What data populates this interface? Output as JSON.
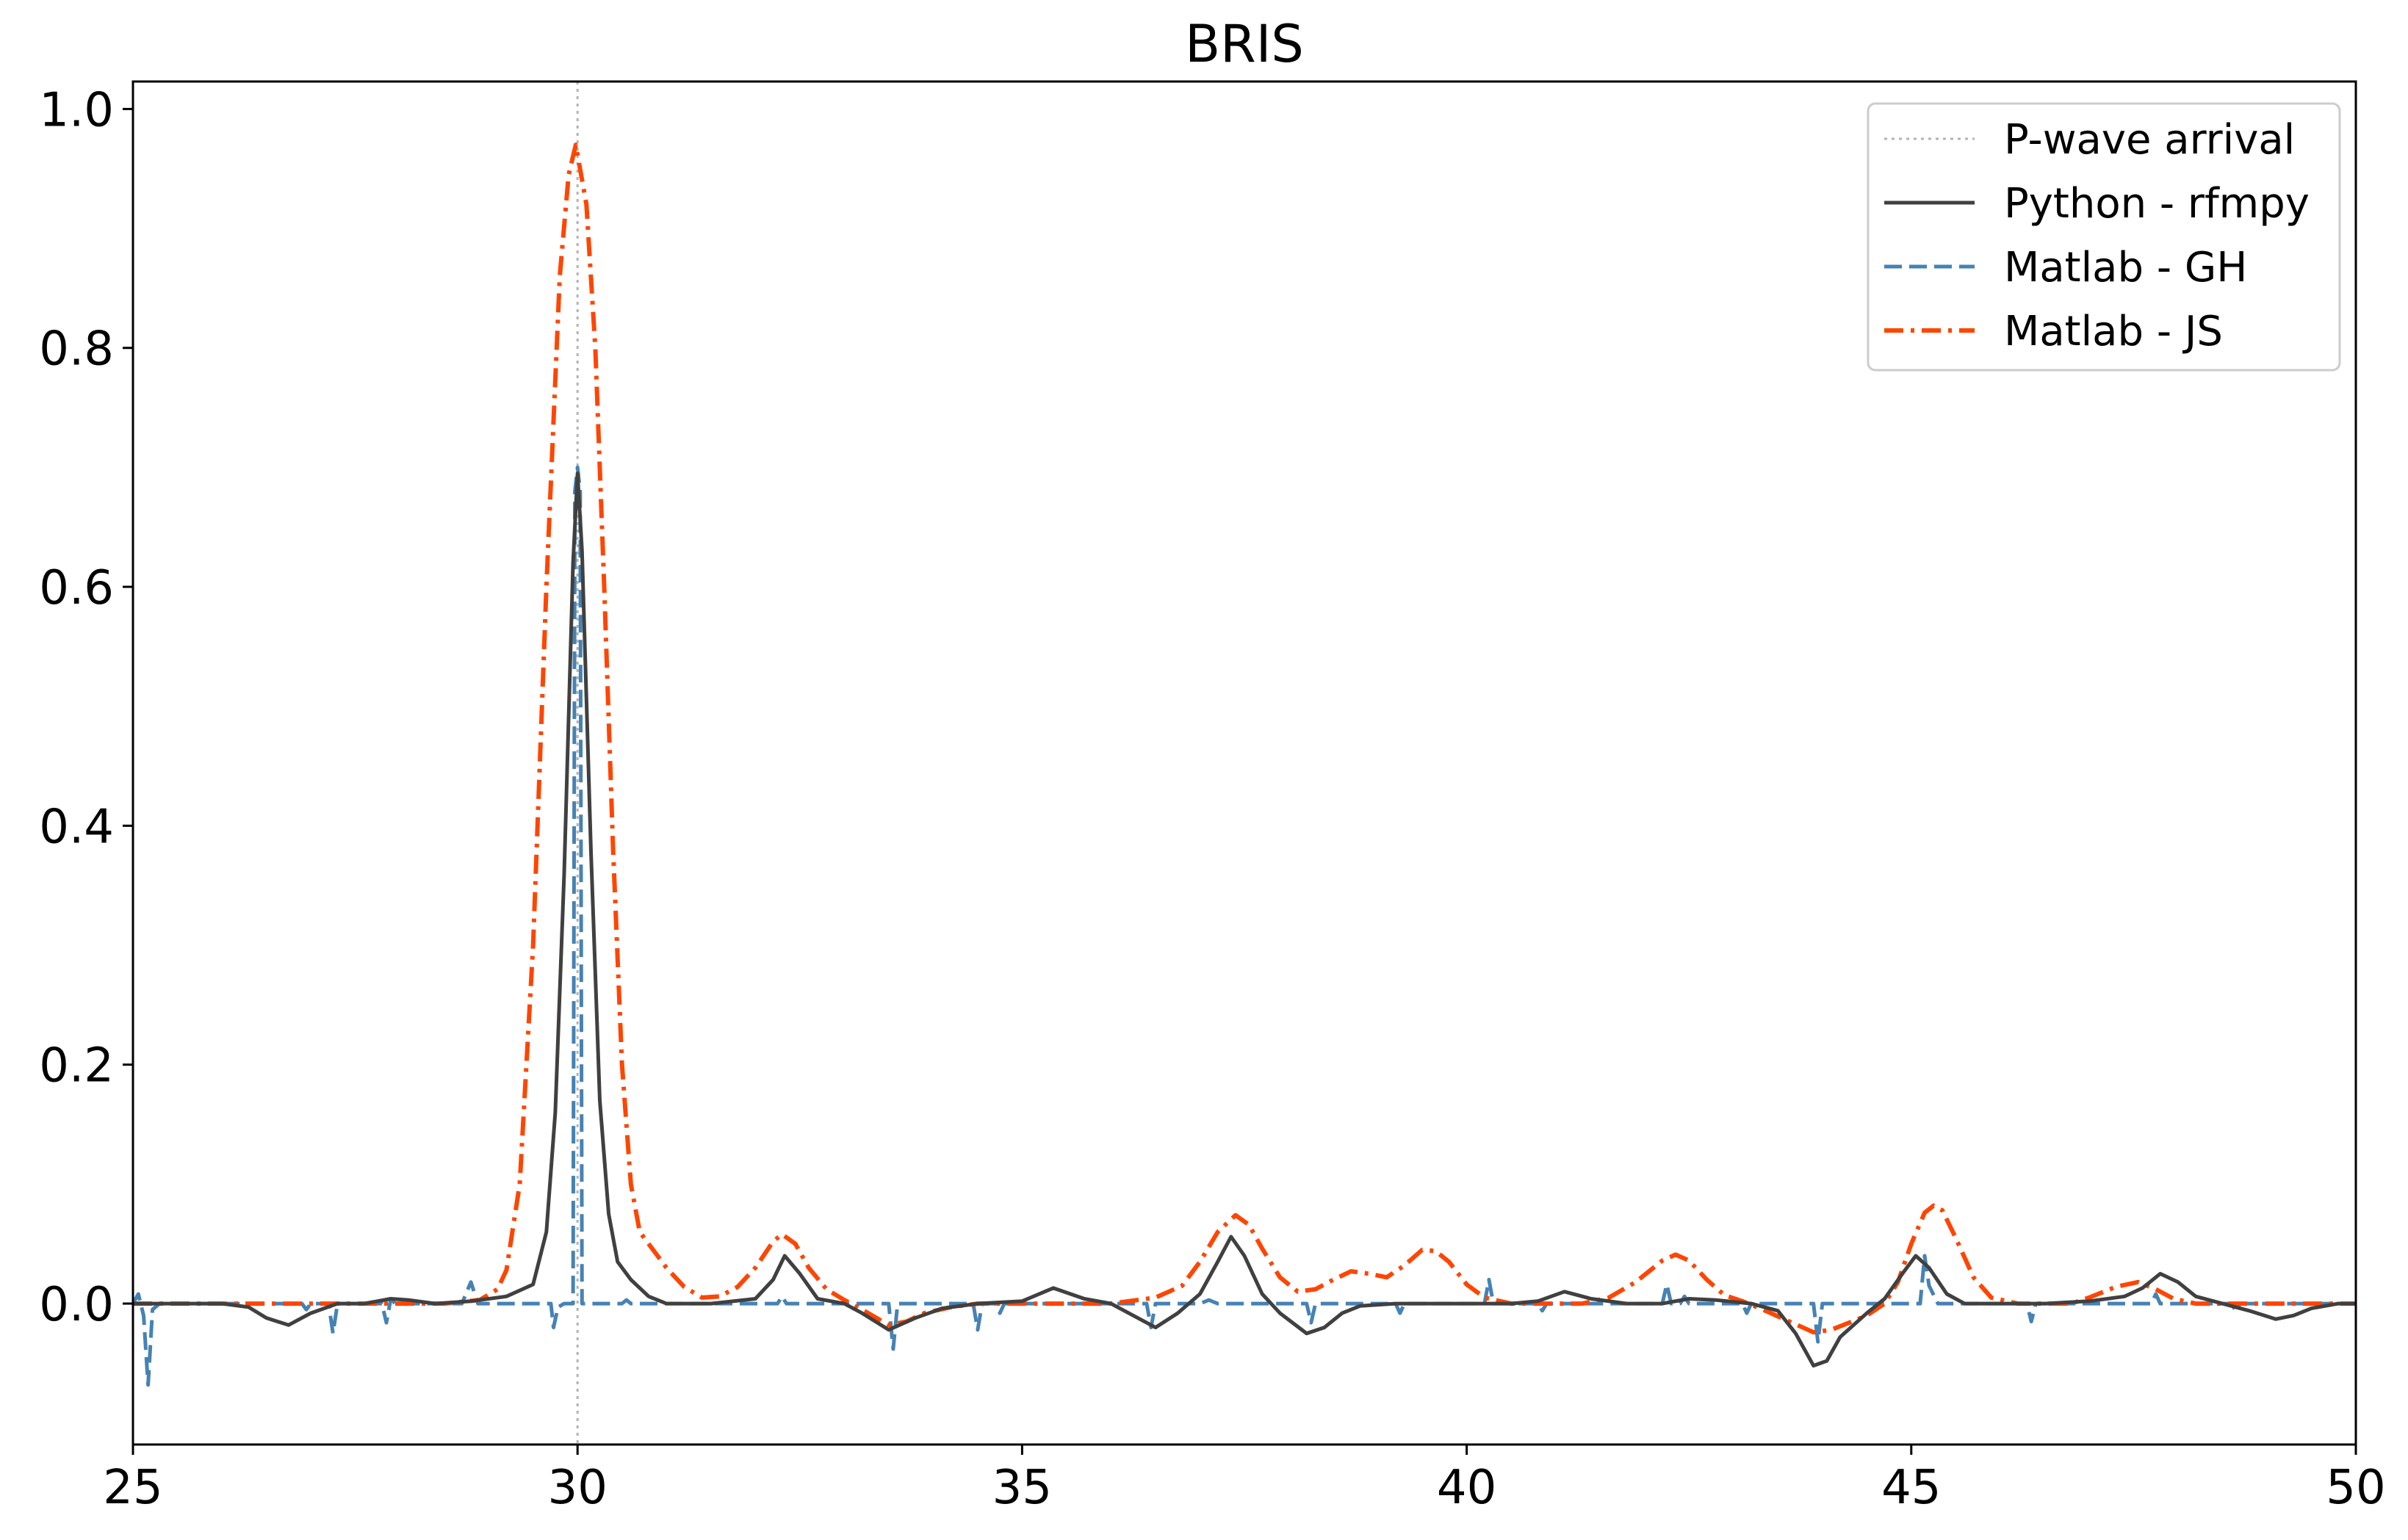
{
  "chart_data": {
    "type": "line",
    "title": "BRIS",
    "xlabel": "",
    "ylabel": "",
    "xlim": [
      25,
      50
    ],
    "ylim": [
      -0.118,
      1.023
    ],
    "xticks": [
      25,
      30,
      35,
      40,
      45,
      50
    ],
    "xtick_labels": [
      "25",
      "30",
      "35",
      "40",
      "45",
      "50"
    ],
    "yticks": [
      0.0,
      0.2,
      0.4,
      0.6,
      0.8,
      1.0
    ],
    "ytick_labels": [
      "0.0",
      "0.2",
      "0.4",
      "0.6",
      "0.8",
      "1.0"
    ],
    "grid": false,
    "legend_position": "upper right",
    "vline": {
      "x": 30.0,
      "name": "P-wave arrival",
      "color": "#b3b3b3",
      "style": "dotted"
    },
    "series": [
      {
        "name": "Python - rfmpy",
        "color": "#404040",
        "style": "solid",
        "points": [
          [
            25.0,
            0.0
          ],
          [
            25.5,
            0.0
          ],
          [
            26.0,
            0.0
          ],
          [
            26.3,
            -0.003
          ],
          [
            26.5,
            -0.012
          ],
          [
            26.75,
            -0.018
          ],
          [
            27.0,
            -0.008
          ],
          [
            27.3,
            0.0
          ],
          [
            27.6,
            0.0
          ],
          [
            27.9,
            0.004
          ],
          [
            28.1,
            0.003
          ],
          [
            28.4,
            0.0
          ],
          [
            28.8,
            0.002
          ],
          [
            29.2,
            0.006
          ],
          [
            29.5,
            0.016
          ],
          [
            29.65,
            0.06
          ],
          [
            29.75,
            0.16
          ],
          [
            29.85,
            0.36
          ],
          [
            29.95,
            0.62
          ],
          [
            30.0,
            0.695
          ],
          [
            30.05,
            0.63
          ],
          [
            30.15,
            0.38
          ],
          [
            30.25,
            0.17
          ],
          [
            30.35,
            0.075
          ],
          [
            30.45,
            0.035
          ],
          [
            30.6,
            0.02
          ],
          [
            30.8,
            0.006
          ],
          [
            31.0,
            0.0
          ],
          [
            31.5,
            0.0
          ],
          [
            32.0,
            0.004
          ],
          [
            32.2,
            0.02
          ],
          [
            32.33,
            0.04
          ],
          [
            32.5,
            0.025
          ],
          [
            32.7,
            0.004
          ],
          [
            33.0,
            0.0
          ],
          [
            33.2,
            -0.008
          ],
          [
            33.5,
            -0.022
          ],
          [
            33.8,
            -0.012
          ],
          [
            34.1,
            -0.004
          ],
          [
            34.5,
            0.0
          ],
          [
            35.0,
            0.002
          ],
          [
            35.35,
            0.013
          ],
          [
            35.7,
            0.004
          ],
          [
            36.0,
            0.0
          ],
          [
            36.2,
            -0.008
          ],
          [
            36.5,
            -0.02
          ],
          [
            36.75,
            -0.008
          ],
          [
            37.0,
            0.008
          ],
          [
            37.2,
            0.035
          ],
          [
            37.35,
            0.056
          ],
          [
            37.5,
            0.04
          ],
          [
            37.7,
            0.008
          ],
          [
            37.9,
            -0.008
          ],
          [
            38.2,
            -0.025
          ],
          [
            38.4,
            -0.02
          ],
          [
            38.6,
            -0.008
          ],
          [
            38.8,
            -0.002
          ],
          [
            39.2,
            0.0
          ],
          [
            40.0,
            0.0
          ],
          [
            40.5,
            0.0
          ],
          [
            40.8,
            0.002
          ],
          [
            41.1,
            0.01
          ],
          [
            41.4,
            0.004
          ],
          [
            41.8,
            0.0
          ],
          [
            42.2,
            0.0
          ],
          [
            42.5,
            0.004
          ],
          [
            42.8,
            0.003
          ],
          [
            43.2,
            0.0
          ],
          [
            43.5,
            -0.006
          ],
          [
            43.7,
            -0.025
          ],
          [
            43.9,
            -0.052
          ],
          [
            44.05,
            -0.048
          ],
          [
            44.2,
            -0.028
          ],
          [
            44.5,
            -0.008
          ],
          [
            44.7,
            0.004
          ],
          [
            44.9,
            0.025
          ],
          [
            45.05,
            0.04
          ],
          [
            45.2,
            0.03
          ],
          [
            45.4,
            0.008
          ],
          [
            45.6,
            0.0
          ],
          [
            46.0,
            0.0
          ],
          [
            46.5,
            0.0
          ],
          [
            47.0,
            0.002
          ],
          [
            47.4,
            0.006
          ],
          [
            47.6,
            0.013
          ],
          [
            47.8,
            0.025
          ],
          [
            48.0,
            0.018
          ],
          [
            48.2,
            0.006
          ],
          [
            48.5,
            0.0
          ],
          [
            48.8,
            -0.006
          ],
          [
            49.1,
            -0.013
          ],
          [
            49.3,
            -0.01
          ],
          [
            49.5,
            -0.004
          ],
          [
            49.8,
            0.0
          ],
          [
            50.0,
            0.0
          ]
        ]
      },
      {
        "name": "Matlab - GH",
        "color": "#4682b4",
        "style": "dashed",
        "points": [
          [
            25.0,
            0.0
          ],
          [
            25.06,
            0.008
          ],
          [
            25.12,
            -0.01
          ],
          [
            25.17,
            -0.068
          ],
          [
            25.22,
            -0.005
          ],
          [
            25.3,
            0.0
          ],
          [
            26.0,
            0.0
          ],
          [
            26.9,
            0.0
          ],
          [
            26.95,
            -0.005
          ],
          [
            27.0,
            0.0
          ],
          [
            27.2,
            0.0
          ],
          [
            27.25,
            -0.025
          ],
          [
            27.3,
            0.0
          ],
          [
            27.8,
            0.0
          ],
          [
            27.85,
            -0.016
          ],
          [
            27.9,
            0.004
          ],
          [
            27.95,
            0.0
          ],
          [
            28.7,
            0.0
          ],
          [
            28.8,
            0.018
          ],
          [
            28.88,
            0.0
          ],
          [
            29.7,
            0.0
          ],
          [
            29.73,
            -0.02
          ],
          [
            29.78,
            -0.003
          ],
          [
            29.85,
            0.0
          ],
          [
            29.95,
            0.0
          ],
          [
            29.97,
            0.68
          ],
          [
            30.0,
            0.7
          ],
          [
            30.03,
            0.68
          ],
          [
            30.05,
            0.0
          ],
          [
            30.5,
            0.0
          ],
          [
            30.55,
            0.003
          ],
          [
            30.6,
            0.0
          ],
          [
            32.25,
            0.0
          ],
          [
            32.3,
            0.006
          ],
          [
            32.35,
            0.0
          ],
          [
            33.5,
            0.0
          ],
          [
            33.55,
            -0.038
          ],
          [
            33.6,
            0.0
          ],
          [
            34.45,
            0.0
          ],
          [
            34.5,
            -0.022
          ],
          [
            34.55,
            0.0
          ],
          [
            34.7,
            0.0
          ],
          [
            34.75,
            -0.008
          ],
          [
            34.8,
            0.0
          ],
          [
            36.4,
            0.0
          ],
          [
            36.45,
            -0.02
          ],
          [
            36.5,
            0.0
          ],
          [
            37.0,
            0.0
          ],
          [
            37.1,
            0.003
          ],
          [
            37.2,
            0.0
          ],
          [
            38.2,
            0.0
          ],
          [
            38.25,
            -0.016
          ],
          [
            38.3,
            0.0
          ],
          [
            39.2,
            0.0
          ],
          [
            39.25,
            -0.008
          ],
          [
            39.3,
            0.0
          ],
          [
            40.2,
            0.0
          ],
          [
            40.25,
            0.02
          ],
          [
            40.3,
            0.0
          ],
          [
            40.8,
            0.0
          ],
          [
            40.85,
            -0.006
          ],
          [
            40.9,
            0.0
          ],
          [
            42.2,
            0.0
          ],
          [
            42.25,
            0.016
          ],
          [
            42.3,
            0.0
          ],
          [
            42.4,
            0.0
          ],
          [
            42.45,
            0.006
          ],
          [
            42.5,
            0.0
          ],
          [
            43.1,
            0.0
          ],
          [
            43.15,
            -0.008
          ],
          [
            43.2,
            0.0
          ],
          [
            43.9,
            0.0
          ],
          [
            43.95,
            -0.032
          ],
          [
            44.0,
            0.0
          ],
          [
            45.1,
            0.0
          ],
          [
            45.15,
            0.04
          ],
          [
            45.2,
            0.015
          ],
          [
            45.3,
            0.0
          ],
          [
            46.3,
            0.0
          ],
          [
            46.35,
            -0.015
          ],
          [
            46.4,
            0.0
          ],
          [
            47.7,
            0.0
          ],
          [
            47.75,
            0.008
          ],
          [
            47.8,
            0.0
          ],
          [
            48.6,
            0.0
          ],
          [
            48.65,
            -0.006
          ],
          [
            48.7,
            0.0
          ],
          [
            50.0,
            0.0
          ]
        ]
      },
      {
        "name": "Matlab - JS",
        "color": "#ff4500",
        "style": "dashdot",
        "points": [
          [
            25.0,
            0.0
          ],
          [
            28.5,
            0.0
          ],
          [
            28.9,
            0.003
          ],
          [
            29.1,
            0.012
          ],
          [
            29.2,
            0.028
          ],
          [
            29.35,
            0.1
          ],
          [
            29.5,
            0.3
          ],
          [
            29.65,
            0.6
          ],
          [
            29.8,
            0.86
          ],
          [
            29.9,
            0.945
          ],
          [
            29.98,
            0.97
          ],
          [
            30.1,
            0.92
          ],
          [
            30.2,
            0.8
          ],
          [
            30.3,
            0.6
          ],
          [
            30.4,
            0.38
          ],
          [
            30.5,
            0.2
          ],
          [
            30.6,
            0.1
          ],
          [
            30.7,
            0.06
          ],
          [
            30.85,
            0.045
          ],
          [
            31.0,
            0.03
          ],
          [
            31.2,
            0.014
          ],
          [
            31.4,
            0.005
          ],
          [
            31.6,
            0.006
          ],
          [
            31.8,
            0.014
          ],
          [
            32.0,
            0.03
          ],
          [
            32.2,
            0.052
          ],
          [
            32.3,
            0.058
          ],
          [
            32.45,
            0.05
          ],
          [
            32.6,
            0.03
          ],
          [
            32.8,
            0.012
          ],
          [
            33.0,
            0.003
          ],
          [
            33.2,
            -0.005
          ],
          [
            33.5,
            -0.018
          ],
          [
            33.7,
            -0.015
          ],
          [
            33.9,
            -0.008
          ],
          [
            34.2,
            -0.003
          ],
          [
            34.5,
            0.0
          ],
          [
            36.0,
            0.0
          ],
          [
            36.5,
            0.005
          ],
          [
            36.8,
            0.015
          ],
          [
            37.0,
            0.035
          ],
          [
            37.2,
            0.06
          ],
          [
            37.4,
            0.074
          ],
          [
            37.55,
            0.066
          ],
          [
            37.7,
            0.046
          ],
          [
            37.9,
            0.022
          ],
          [
            38.1,
            0.01
          ],
          [
            38.3,
            0.012
          ],
          [
            38.5,
            0.02
          ],
          [
            38.7,
            0.027
          ],
          [
            38.9,
            0.025
          ],
          [
            39.1,
            0.022
          ],
          [
            39.3,
            0.032
          ],
          [
            39.5,
            0.045
          ],
          [
            39.65,
            0.044
          ],
          [
            39.8,
            0.035
          ],
          [
            40.0,
            0.016
          ],
          [
            40.2,
            0.005
          ],
          [
            40.5,
            0.0
          ],
          [
            41.3,
            0.0
          ],
          [
            41.6,
            0.005
          ],
          [
            41.9,
            0.018
          ],
          [
            42.2,
            0.036
          ],
          [
            42.35,
            0.041
          ],
          [
            42.5,
            0.036
          ],
          [
            42.7,
            0.02
          ],
          [
            42.9,
            0.007
          ],
          [
            43.1,
            0.002
          ],
          [
            43.3,
            -0.004
          ],
          [
            43.6,
            -0.014
          ],
          [
            43.9,
            -0.024
          ],
          [
            44.1,
            -0.022
          ],
          [
            44.3,
            -0.016
          ],
          [
            44.5,
            -0.01
          ],
          [
            44.7,
            0.0
          ],
          [
            44.85,
            0.018
          ],
          [
            45.0,
            0.05
          ],
          [
            45.15,
            0.076
          ],
          [
            45.25,
            0.082
          ],
          [
            45.35,
            0.078
          ],
          [
            45.5,
            0.055
          ],
          [
            45.7,
            0.022
          ],
          [
            45.9,
            0.005
          ],
          [
            46.2,
            0.0
          ],
          [
            46.8,
            0.0
          ],
          [
            47.0,
            0.005
          ],
          [
            47.3,
            0.014
          ],
          [
            47.55,
            0.018
          ],
          [
            47.75,
            0.012
          ],
          [
            47.95,
            0.004
          ],
          [
            48.2,
            0.0
          ],
          [
            50.0,
            0.0
          ]
        ]
      }
    ]
  }
}
